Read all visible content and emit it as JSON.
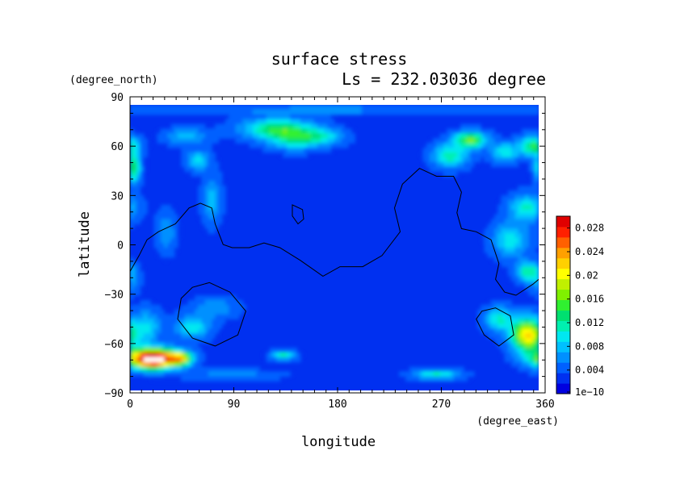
{
  "chart_data": {
    "type": "heatmap",
    "title": "surface stress",
    "subtitle": "Ls = 232.03036 degree",
    "xlabel": "longitude",
    "ylabel": "latitude",
    "x_unit": "(degree_east)",
    "y_unit": "(degree_north)",
    "xlim": [
      0,
      360
    ],
    "ylim": [
      -90,
      90
    ],
    "x_ticks": [
      0,
      90,
      180,
      270,
      360
    ],
    "x_tick_labels": [
      "0",
      "90",
      "180",
      "270",
      "360"
    ],
    "y_ticks": [
      90,
      60,
      30,
      0,
      -30,
      -60,
      -90
    ],
    "y_tick_labels": [
      "90",
      "60",
      "30",
      "0",
      "−30",
      "−60",
      "−90"
    ],
    "colorbar": {
      "min": 1e-10,
      "max": 0.03,
      "tick_values": [
        1e-10,
        0.004,
        0.008,
        0.012,
        0.016,
        0.02,
        0.024,
        0.028
      ],
      "tick_labels": [
        "1e−10",
        "0.004",
        "0.008",
        "0.012",
        "0.016",
        "0.02",
        "0.024",
        "0.028"
      ],
      "colors": [
        "#0000e0",
        "#0030f0",
        "#0060ff",
        "#0090ff",
        "#00c0ff",
        "#00e8f0",
        "#00f0b0",
        "#00e070",
        "#30f030",
        "#80f000",
        "#c0f000",
        "#ffff00",
        "#ffd000",
        "#ffa000",
        "#ff6000",
        "#ff2000",
        "#e00000"
      ]
    },
    "background_value": 0.003,
    "features": [
      {
        "lon": 130,
        "lat": 75,
        "r_lon": 30,
        "r_lat": 6,
        "value": 0.014
      },
      {
        "lon": 145,
        "lat": 68,
        "r_lon": 22,
        "r_lat": 6,
        "value": 0.011
      },
      {
        "lon": 170,
        "lat": 70,
        "r_lon": 18,
        "r_lat": 5,
        "value": 0.009
      },
      {
        "lon": 50,
        "lat": 70,
        "r_lon": 18,
        "r_lat": 5,
        "value": 0.008
      },
      {
        "lon": 60,
        "lat": 55,
        "r_lon": 10,
        "r_lat": 6,
        "value": 0.009
      },
      {
        "lon": 300,
        "lat": 68,
        "r_lon": 14,
        "r_lat": 5,
        "value": 0.016
      },
      {
        "lon": 282,
        "lat": 58,
        "r_lon": 15,
        "r_lat": 7,
        "value": 0.012
      },
      {
        "lon": 330,
        "lat": 60,
        "r_lon": 12,
        "r_lat": 6,
        "value": 0.01
      },
      {
        "lon": 355,
        "lat": 64,
        "r_lon": 12,
        "r_lat": 6,
        "value": 0.014
      },
      {
        "lon": 3,
        "lat": 50,
        "r_lon": 6,
        "r_lat": 9,
        "value": 0.014
      },
      {
        "lon": 350,
        "lat": 25,
        "r_lon": 15,
        "r_lat": 8,
        "value": 0.011
      },
      {
        "lon": 335,
        "lat": 5,
        "r_lon": 15,
        "r_lat": 10,
        "value": 0.01
      },
      {
        "lon": 350,
        "lat": -15,
        "r_lon": 10,
        "r_lat": 6,
        "value": 0.012
      },
      {
        "lon": 72,
        "lat": 30,
        "r_lon": 8,
        "r_lat": 14,
        "value": 0.008
      },
      {
        "lon": 32,
        "lat": 10,
        "r_lon": 8,
        "r_lat": 12,
        "value": 0.007
      },
      {
        "lon": 0,
        "lat": -20,
        "r_lon": 8,
        "r_lat": 8,
        "value": 0.007
      },
      {
        "lon": 15,
        "lat": -50,
        "r_lon": 12,
        "r_lat": 10,
        "value": 0.009
      },
      {
        "lon": 55,
        "lat": -50,
        "r_lon": 15,
        "r_lat": 7,
        "value": 0.01
      },
      {
        "lon": 75,
        "lat": -38,
        "r_lon": 18,
        "r_lat": 6,
        "value": 0.007
      },
      {
        "lon": 325,
        "lat": -45,
        "r_lon": 12,
        "r_lat": 7,
        "value": 0.011
      },
      {
        "lon": 350,
        "lat": -55,
        "r_lon": 14,
        "r_lat": 10,
        "value": 0.022
      },
      {
        "lon": 20,
        "lat": -70,
        "r_lon": 22,
        "r_lat": 6,
        "value": 0.034
      },
      {
        "lon": 45,
        "lat": -70,
        "r_lon": 10,
        "r_lat": 4,
        "value": 0.016
      },
      {
        "lon": 135,
        "lat": -68,
        "r_lon": 10,
        "r_lat": 3,
        "value": 0.011
      },
      {
        "lon": 270,
        "lat": -80,
        "r_lon": 20,
        "r_lat": 3,
        "value": 0.011
      },
      {
        "lon": 90,
        "lat": -80,
        "r_lon": 40,
        "r_lat": 3,
        "value": 0.006
      },
      {
        "lon": 180,
        "lat": 87,
        "r_lon": 180,
        "r_lat": 3,
        "value": 0.006
      }
    ],
    "contours": [
      {
        "closed": false,
        "points": [
          [
            0,
            -15
          ],
          [
            8,
            -5
          ],
          [
            15,
            5
          ],
          [
            25,
            10
          ],
          [
            40,
            15
          ],
          [
            52,
            25
          ],
          [
            62,
            28
          ],
          [
            72,
            25
          ],
          [
            75,
            15
          ],
          [
            82,
            2
          ],
          [
            90,
            0
          ],
          [
            105,
            0
          ],
          [
            118,
            3
          ],
          [
            132,
            0
          ],
          [
            150,
            -8
          ],
          [
            170,
            -18
          ],
          [
            185,
            -12
          ],
          [
            205,
            -12
          ],
          [
            222,
            -5
          ],
          [
            238,
            10
          ],
          [
            233,
            25
          ],
          [
            240,
            40
          ],
          [
            255,
            50
          ],
          [
            270,
            45
          ],
          [
            285,
            45
          ],
          [
            292,
            35
          ],
          [
            288,
            22
          ],
          [
            292,
            12
          ],
          [
            305,
            10
          ],
          [
            318,
            5
          ],
          [
            325,
            -10
          ],
          [
            322,
            -20
          ],
          [
            330,
            -28
          ],
          [
            340,
            -30
          ],
          [
            355,
            -23
          ],
          [
            360,
            -20
          ]
        ]
      },
      {
        "closed": true,
        "points": [
          [
            143,
            27
          ],
          [
            152,
            24
          ],
          [
            153,
            18
          ],
          [
            148,
            15
          ],
          [
            143,
            20
          ]
        ]
      },
      {
        "closed": true,
        "points": [
          [
            70,
            -22
          ],
          [
            88,
            -28
          ],
          [
            102,
            -40
          ],
          [
            95,
            -55
          ],
          [
            75,
            -62
          ],
          [
            55,
            -57
          ],
          [
            42,
            -45
          ],
          [
            45,
            -32
          ],
          [
            55,
            -25
          ]
        ]
      },
      {
        "closed": true,
        "points": [
          [
            322,
            -38
          ],
          [
            335,
            -43
          ],
          [
            338,
            -55
          ],
          [
            325,
            -62
          ],
          [
            312,
            -55
          ],
          [
            305,
            -45
          ],
          [
            310,
            -40
          ]
        ]
      }
    ]
  }
}
